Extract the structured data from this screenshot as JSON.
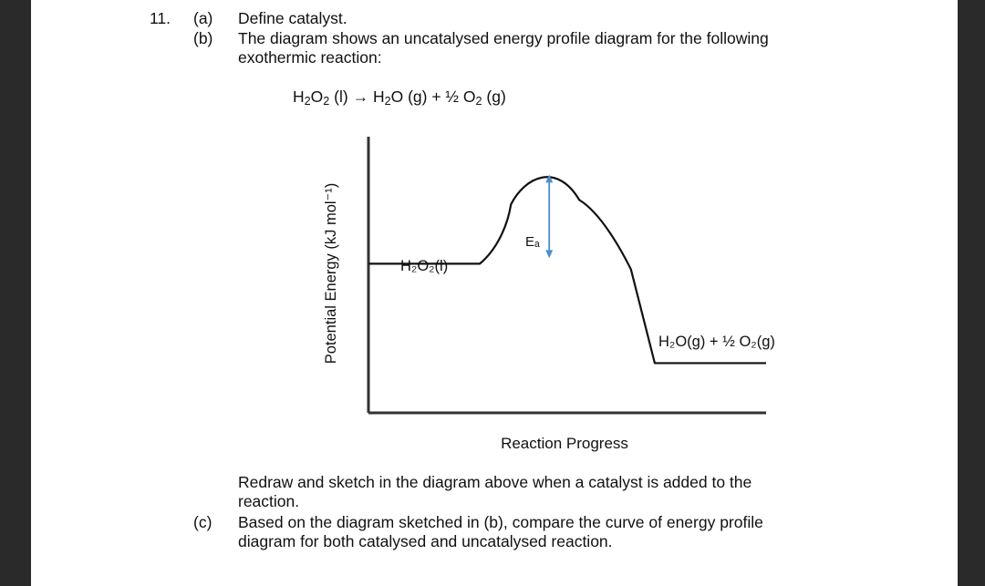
{
  "question": {
    "number": "11.",
    "part_a": {
      "label": "(a)",
      "text": "Define catalyst."
    },
    "part_b": {
      "label": "(b)",
      "line1": "The diagram shows an uncatalysed energy profile diagram for the following",
      "line2": "exothermic reaction:"
    },
    "equation": {
      "h": "H",
      "two": "2",
      "o": "O",
      "space_l": " (l)",
      "arrow": " → ",
      "h2o_tail": " (g) + ½ ",
      "o2_tail": " (g)"
    },
    "instruction": {
      "line1": "Redraw and sketch in the diagram above when a catalyst is added to the",
      "line2": "reaction."
    },
    "part_c": {
      "label": "(c)",
      "line1": "Based on the diagram sketched in (b), compare the curve of energy profile",
      "line2": "diagram for both catalysed and uncatalysed reaction."
    }
  },
  "chart_data": {
    "type": "line",
    "title": "",
    "xlabel": "Reaction Progress",
    "ylabel": "Potential Energy (kJ mol⁻¹)",
    "reactant_label": "H₂O₂(l)",
    "product_label": "H₂O(g) + ½ O₂(g)",
    "activation_label": "Eₐ",
    "series": [
      {
        "values": [
          {
            "x": 0.0,
            "y": 0.54
          },
          {
            "x": 0.28,
            "y": 0.54
          },
          {
            "x": 0.45,
            "y": 0.87
          },
          {
            "x": 0.66,
            "y": 0.52
          },
          {
            "x": 0.72,
            "y": 0.18
          },
          {
            "x": 1.0,
            "y": 0.18
          }
        ]
      }
    ],
    "grid": false,
    "legend": "none",
    "colors": {
      "curve": "#111111",
      "axes": "#333333",
      "arrow": "#4a8fd0"
    }
  }
}
